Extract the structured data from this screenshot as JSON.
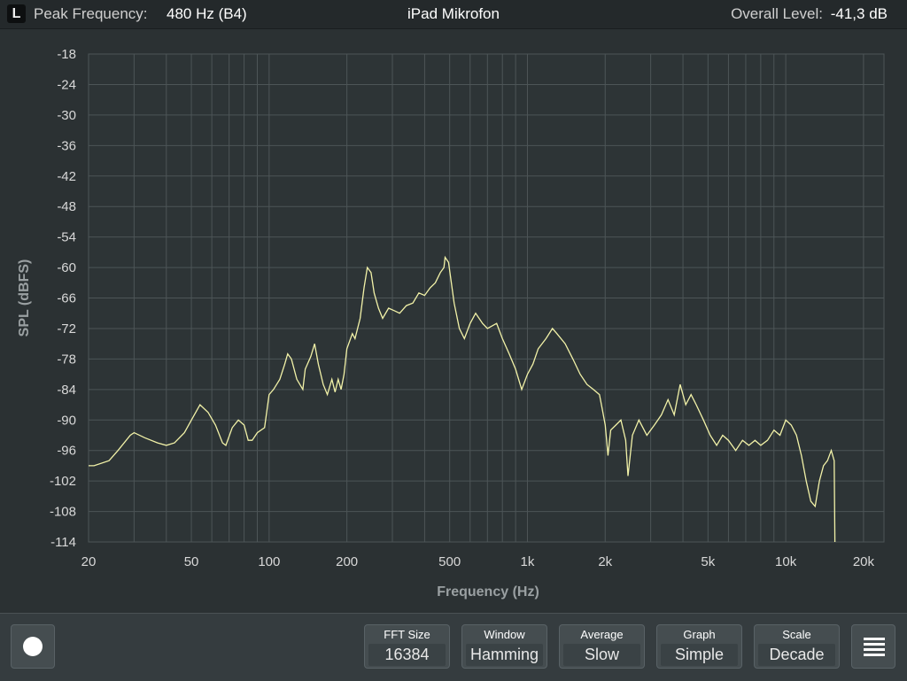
{
  "header": {
    "channel": "L",
    "peak_label": "Peak Frequency:",
    "peak_value": "480 Hz (B4)",
    "source": "iPad Mikrofon",
    "level_label": "Overall Level:",
    "level_value": "-41,3 dB"
  },
  "controls": [
    {
      "label": "FFT Size",
      "value": "16384"
    },
    {
      "label": "Window",
      "value": "Hamming"
    },
    {
      "label": "Average",
      "value": "Slow"
    },
    {
      "label": "Graph",
      "value": "Simple"
    },
    {
      "label": "Scale",
      "value": "Decade"
    }
  ],
  "icons": {
    "record": "record-icon",
    "menu": "menu-icon"
  },
  "colors": {
    "background": "#2b3133",
    "plot_background": "#2d3436",
    "grid": "#4d5557",
    "trace": "#f2f2a8"
  },
  "chart_data": {
    "type": "line",
    "title": "",
    "xlabel": "Frequency (Hz)",
    "ylabel": "SPL (dBFS)",
    "x_scale": "log",
    "xlim": [
      20,
      24000
    ],
    "ylim": [
      -114,
      -18
    ],
    "x_ticks": [
      20,
      50,
      100,
      200,
      500,
      1000,
      2000,
      5000,
      10000,
      20000
    ],
    "x_tick_labels": [
      "20",
      "50",
      "100",
      "200",
      "500",
      "1k",
      "2k",
      "5k",
      "10k",
      "20k"
    ],
    "y_ticks": [
      -18,
      -24,
      -30,
      -36,
      -42,
      -48,
      -54,
      -60,
      -66,
      -72,
      -78,
      -84,
      -90,
      -96,
      -102,
      -108,
      -114
    ],
    "y_tick_labels": [
      "-18",
      "-24",
      "-30",
      "-36",
      "-42",
      "-48",
      "-54",
      "-60",
      "-66",
      "-72",
      "-78",
      "-84",
      "-90",
      "-96",
      "-102",
      "-108",
      "-114"
    ],
    "grid": true,
    "series": [
      {
        "points": [
          [
            20,
            -99
          ],
          [
            21,
            -99
          ],
          [
            24,
            -98
          ],
          [
            26,
            -96
          ],
          [
            29,
            -93
          ],
          [
            30,
            -92.5
          ],
          [
            33,
            -93.5
          ],
          [
            37,
            -94.5
          ],
          [
            40,
            -95
          ],
          [
            43,
            -94.5
          ],
          [
            47,
            -92.5
          ],
          [
            50,
            -90
          ],
          [
            54,
            -87
          ],
          [
            58,
            -88.5
          ],
          [
            62,
            -91
          ],
          [
            66,
            -94.5
          ],
          [
            68,
            -95
          ],
          [
            72,
            -91.5
          ],
          [
            76,
            -90
          ],
          [
            80,
            -91
          ],
          [
            83,
            -94
          ],
          [
            86,
            -94
          ],
          [
            90,
            -92.5
          ],
          [
            96,
            -91.5
          ],
          [
            100,
            -85
          ],
          [
            104,
            -84
          ],
          [
            110,
            -82
          ],
          [
            115,
            -79
          ],
          [
            118,
            -77
          ],
          [
            122,
            -78
          ],
          [
            128,
            -82
          ],
          [
            135,
            -84
          ],
          [
            138,
            -80
          ],
          [
            145,
            -77.5
          ],
          [
            150,
            -75
          ],
          [
            155,
            -79
          ],
          [
            162,
            -83
          ],
          [
            168,
            -85
          ],
          [
            175,
            -82
          ],
          [
            180,
            -84.5
          ],
          [
            185,
            -82
          ],
          [
            190,
            -84
          ],
          [
            195,
            -81
          ],
          [
            200,
            -76
          ],
          [
            210,
            -73
          ],
          [
            215,
            -74
          ],
          [
            225,
            -70
          ],
          [
            233,
            -64
          ],
          [
            240,
            -60
          ],
          [
            248,
            -61
          ],
          [
            255,
            -65
          ],
          [
            265,
            -68
          ],
          [
            275,
            -70
          ],
          [
            290,
            -68
          ],
          [
            305,
            -68.5
          ],
          [
            320,
            -69
          ],
          [
            340,
            -67.5
          ],
          [
            360,
            -67
          ],
          [
            380,
            -65
          ],
          [
            400,
            -65.5
          ],
          [
            420,
            -64
          ],
          [
            440,
            -63
          ],
          [
            460,
            -61
          ],
          [
            475,
            -60
          ],
          [
            480,
            -58
          ],
          [
            495,
            -59
          ],
          [
            520,
            -67
          ],
          [
            545,
            -72
          ],
          [
            570,
            -74
          ],
          [
            600,
            -71
          ],
          [
            630,
            -69
          ],
          [
            670,
            -71
          ],
          [
            700,
            -72
          ],
          [
            760,
            -71
          ],
          [
            800,
            -74
          ],
          [
            850,
            -77
          ],
          [
            900,
            -80
          ],
          [
            950,
            -84
          ],
          [
            1000,
            -81
          ],
          [
            1050,
            -79
          ],
          [
            1100,
            -76
          ],
          [
            1180,
            -74
          ],
          [
            1250,
            -72
          ],
          [
            1300,
            -73
          ],
          [
            1400,
            -75
          ],
          [
            1500,
            -78
          ],
          [
            1600,
            -81
          ],
          [
            1700,
            -83
          ],
          [
            1800,
            -84
          ],
          [
            1900,
            -85
          ],
          [
            1950,
            -88
          ],
          [
            2000,
            -91
          ],
          [
            2050,
            -97
          ],
          [
            2100,
            -92
          ],
          [
            2200,
            -91
          ],
          [
            2300,
            -90
          ],
          [
            2400,
            -94
          ],
          [
            2450,
            -101
          ],
          [
            2550,
            -93
          ],
          [
            2700,
            -90
          ],
          [
            2900,
            -93
          ],
          [
            3100,
            -91
          ],
          [
            3300,
            -89
          ],
          [
            3500,
            -86
          ],
          [
            3700,
            -89
          ],
          [
            3900,
            -83
          ],
          [
            4100,
            -87
          ],
          [
            4300,
            -85
          ],
          [
            4500,
            -87
          ],
          [
            4800,
            -90
          ],
          [
            5100,
            -93
          ],
          [
            5400,
            -95
          ],
          [
            5700,
            -93
          ],
          [
            6000,
            -94
          ],
          [
            6400,
            -96
          ],
          [
            6800,
            -94
          ],
          [
            7200,
            -95
          ],
          [
            7600,
            -94
          ],
          [
            8000,
            -95
          ],
          [
            8500,
            -94
          ],
          [
            9000,
            -92
          ],
          [
            9500,
            -93
          ],
          [
            10000,
            -90
          ],
          [
            10500,
            -91
          ],
          [
            11000,
            -93
          ],
          [
            11500,
            -97
          ],
          [
            12000,
            -102
          ],
          [
            12500,
            -106
          ],
          [
            13000,
            -107
          ],
          [
            13500,
            -102
          ],
          [
            14000,
            -99
          ],
          [
            14500,
            -98
          ],
          [
            15000,
            -96
          ],
          [
            15400,
            -98
          ],
          [
            15500,
            -114
          ]
        ]
      }
    ]
  }
}
